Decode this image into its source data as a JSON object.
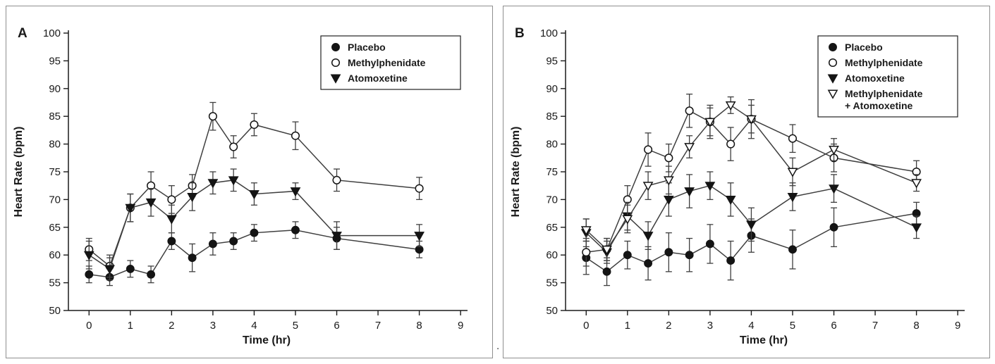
{
  "stray_mark": ".",
  "colors": {
    "line": "#3f3f3f",
    "marker": "#141414",
    "axis": "#1a1a1a",
    "panel_border": "#8f8f8f",
    "background": "#ffffff"
  },
  "chart_data": [
    {
      "type": "line",
      "panel_label": "A",
      "title": "",
      "xlabel": "Time (hr)",
      "ylabel": "Heart Rate (bpm)",
      "xlim": [
        -0.5,
        9.1
      ],
      "ylim": [
        50,
        100
      ],
      "xticks": [
        0,
        1,
        2,
        3,
        4,
        5,
        6,
        7,
        8,
        9
      ],
      "yticks": [
        50,
        55,
        60,
        65,
        70,
        75,
        80,
        85,
        90,
        95,
        100
      ],
      "grid": false,
      "legend_position": "top-right",
      "x": [
        0,
        0.5,
        1,
        1.5,
        2,
        2.5,
        3,
        3.5,
        4,
        5,
        6,
        8
      ],
      "series": [
        {
          "name": "Placebo",
          "marker": "circle-filled",
          "values": [
            56.5,
            56,
            57.5,
            56.5,
            62.5,
            59.5,
            62,
            62.5,
            64,
            64.5,
            63,
            61
          ],
          "errors": [
            1.5,
            1.5,
            1.5,
            1.5,
            1.5,
            2.5,
            2,
            1.5,
            1.5,
            1.5,
            2,
            1.5
          ]
        },
        {
          "name": "Methylphenidate",
          "marker": "circle-open",
          "values": [
            61,
            58,
            68.5,
            72.5,
            70,
            72.5,
            85,
            79.5,
            83.5,
            81.5,
            73.5,
            72
          ],
          "errors": [
            2,
            2,
            2.5,
            2.5,
            2.5,
            2,
            2.5,
            2,
            2,
            2.5,
            2,
            2
          ]
        },
        {
          "name": "Atomoxetine",
          "marker": "triangle-down-filled",
          "values": [
            60,
            57.5,
            68.5,
            69.5,
            66.5,
            70.5,
            73,
            73.5,
            71,
            71.5,
            63.5,
            63.5
          ],
          "errors": [
            2.5,
            2,
            2.5,
            2.5,
            2.5,
            2.5,
            2,
            2,
            2,
            1.5,
            2.5,
            2
          ]
        }
      ]
    },
    {
      "type": "line",
      "panel_label": "B",
      "title": "",
      "xlabel": "Time (hr)",
      "ylabel": "Heart Rate (bpm)",
      "xlim": [
        -0.5,
        9.1
      ],
      "ylim": [
        50,
        100
      ],
      "xticks": [
        0,
        1,
        2,
        3,
        4,
        5,
        6,
        7,
        8,
        9
      ],
      "yticks": [
        50,
        55,
        60,
        65,
        70,
        75,
        80,
        85,
        90,
        95,
        100
      ],
      "grid": false,
      "legend_position": "top-right",
      "x": [
        0,
        0.5,
        1,
        1.5,
        2,
        2.5,
        3,
        3.5,
        4,
        5,
        6,
        8
      ],
      "series": [
        {
          "name": "Placebo",
          "marker": "circle-filled",
          "values": [
            59.5,
            57,
            60,
            58.5,
            60.5,
            60,
            62,
            59,
            63.5,
            61,
            65,
            67.5
          ],
          "errors": [
            3,
            2.5,
            2.5,
            3,
            3.5,
            3,
            3.5,
            3.5,
            3,
            3.5,
            3.5,
            2
          ]
        },
        {
          "name": "Methylphenidate",
          "marker": "circle-open",
          "values": [
            60.5,
            61,
            70,
            79,
            77.5,
            86,
            84,
            80,
            84.5,
            81,
            77.5,
            75
          ],
          "errors": [
            2.5,
            2,
            2.5,
            3,
            2.5,
            3,
            3,
            3,
            3.5,
            2.5,
            2.5,
            2
          ]
        },
        {
          "name": "Atomoxetine",
          "marker": "triangle-down-filled",
          "values": [
            64,
            60.5,
            67,
            63.5,
            70,
            71.5,
            72.5,
            70,
            65.5,
            70.5,
            72,
            65
          ],
          "errors": [
            2.5,
            2,
            2.5,
            2.5,
            3,
            3,
            2.5,
            3,
            3,
            2.5,
            2.5,
            2
          ]
        },
        {
          "name": "Methylphenidate + Atomoxetine",
          "legend_lines": [
            "Methylphenidate",
            "+ Atomoxetine"
          ],
          "marker": "triangle-down-open",
          "values": [
            64.5,
            61,
            66.5,
            72.5,
            73.5,
            79.5,
            84,
            87,
            84.5,
            75,
            79,
            73
          ],
          "errors": [
            2,
            2,
            2.5,
            2.5,
            2.5,
            2,
            2.5,
            1.5,
            2.5,
            2.5,
            2,
            1.5
          ]
        }
      ]
    }
  ]
}
